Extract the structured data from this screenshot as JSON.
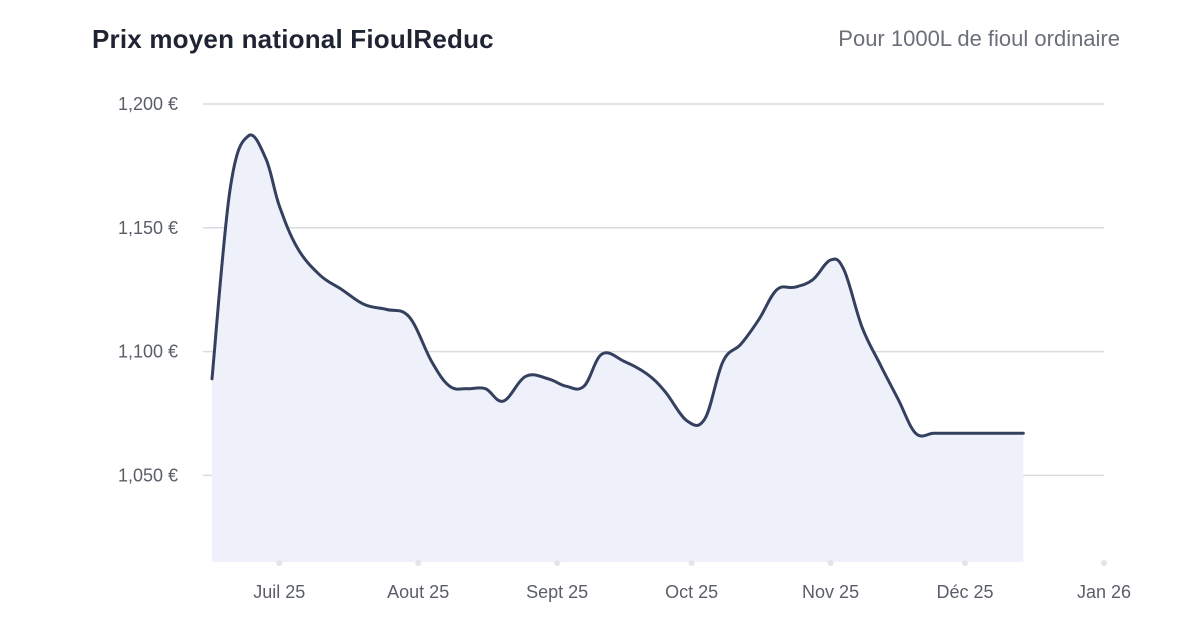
{
  "header": {
    "title": "Prix moyen national FioulReduc",
    "subtitle": "Pour 1000L de fioul ordinaire"
  },
  "colors": {
    "line": "#34405e",
    "area": "#eef1fa",
    "grid": "#d9dbe0",
    "text": "#5a5e68"
  },
  "chart_data": {
    "type": "area",
    "title": "Prix moyen national FioulReduc",
    "subtitle": "Pour 1000L de fioul ordinaire",
    "xlabel": "",
    "ylabel": "",
    "y_unit": "€",
    "ylim": [
      1.015,
      1.2
    ],
    "y_ticks": [
      1.2,
      1.15,
      1.1,
      1.05
    ],
    "y_tick_labels": [
      "1,200 €",
      "1,150 €",
      "1,100 €",
      "1,050 €"
    ],
    "x_ticks": [
      "2025-07-01",
      "2025-08-01",
      "2025-09-01",
      "2025-10-01",
      "2025-11-01",
      "2025-12-01",
      "2026-01-01"
    ],
    "x_tick_labels": [
      "Juil 25",
      "Aout 25",
      "Sept 25",
      "Oct 25",
      "Nov 25",
      "Déc 25",
      "Jan 26"
    ],
    "xlim": [
      "2025-06-16",
      "2026-01-01"
    ],
    "grid": true,
    "legend": "none",
    "series": [
      {
        "x": [
          "2025-06-16",
          "2025-06-20",
          "2025-06-24",
          "2025-06-28",
          "2025-07-01",
          "2025-07-05",
          "2025-07-10",
          "2025-07-15",
          "2025-07-20",
          "2025-07-25",
          "2025-07-30",
          "2025-08-04",
          "2025-08-08",
          "2025-08-12",
          "2025-08-16",
          "2025-08-20",
          "2025-08-25",
          "2025-08-30",
          "2025-09-03",
          "2025-09-07",
          "2025-09-11",
          "2025-09-16",
          "2025-09-21",
          "2025-09-25",
          "2025-09-30",
          "2025-10-04",
          "2025-10-08",
          "2025-10-12",
          "2025-10-16",
          "2025-10-20",
          "2025-10-24",
          "2025-10-28",
          "2025-11-01",
          "2025-11-04",
          "2025-11-08",
          "2025-11-12",
          "2025-11-16",
          "2025-11-20",
          "2025-11-24",
          "2025-11-28",
          "2025-12-02",
          "2025-12-06",
          "2025-12-10",
          "2025-12-14"
        ],
        "values": [
          1.089,
          1.165,
          1.187,
          1.178,
          1.159,
          1.142,
          1.131,
          1.125,
          1.119,
          1.117,
          1.114,
          1.096,
          1.086,
          1.085,
          1.085,
          1.08,
          1.09,
          1.089,
          1.086,
          1.086,
          1.099,
          1.096,
          1.091,
          1.084,
          1.072,
          1.073,
          1.096,
          1.103,
          1.113,
          1.125,
          1.126,
          1.129,
          1.137,
          1.133,
          1.11,
          1.095,
          1.081,
          1.067,
          1.067,
          1.067,
          1.067,
          1.067,
          1.067,
          1.067
        ]
      }
    ]
  }
}
